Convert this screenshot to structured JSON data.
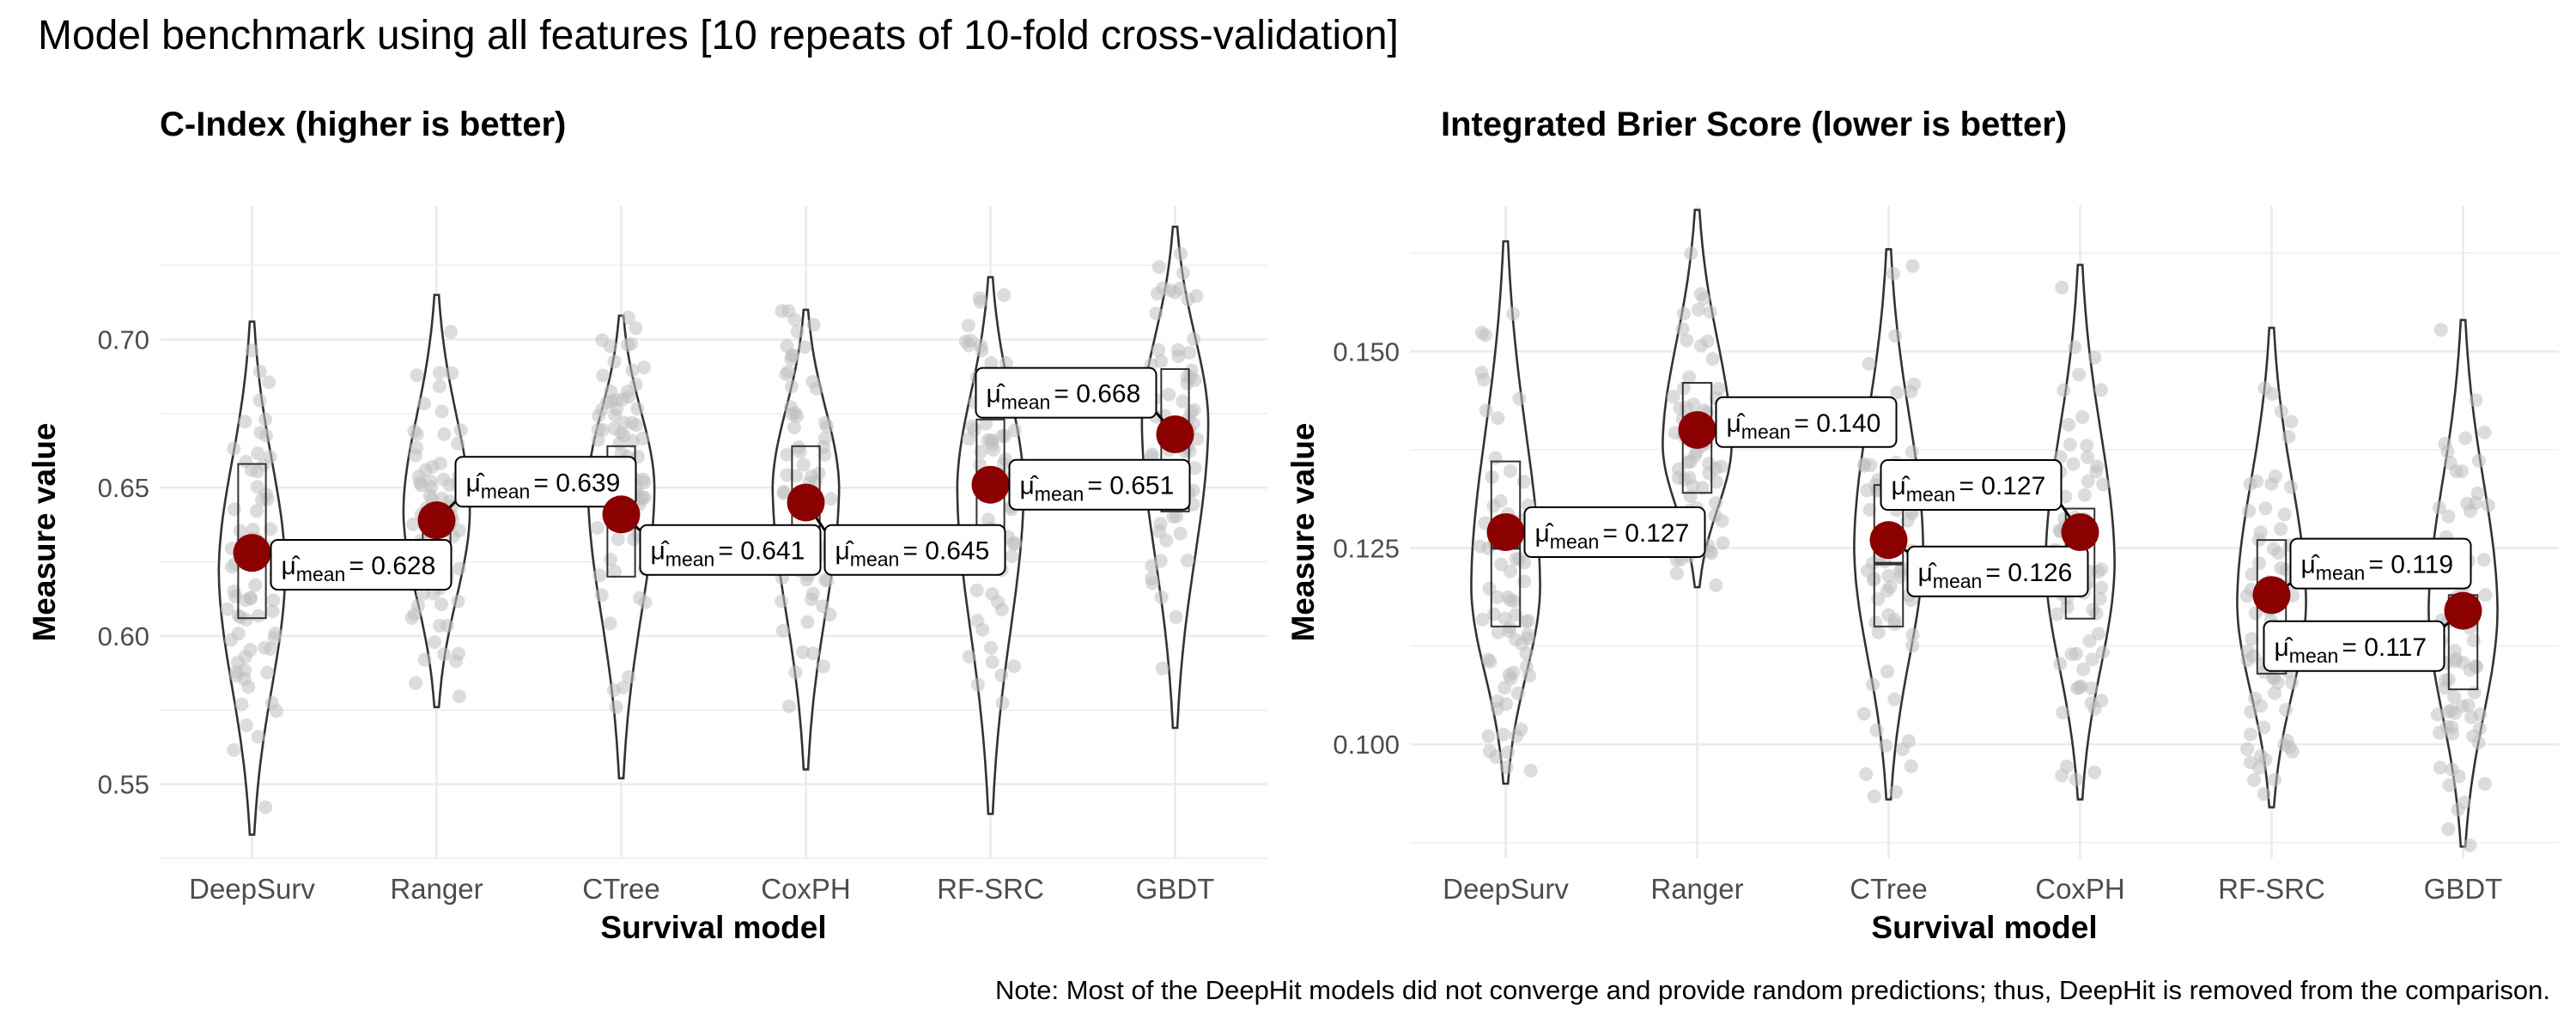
{
  "figure": {
    "title": "Model benchmark using all features [10 repeats of 10-fold cross-validation]",
    "caption": "Note: Most of the DeepHit models did not converge and provide random predictions; thus, DeepHit is removed from the comparison."
  },
  "colors": {
    "mean_point": "#8B0000",
    "jitter_point": "#BFBFBF",
    "outline": "#333333",
    "grid": "#EBEBEB"
  },
  "chart_data": [
    {
      "type": "violin",
      "title": "C-Index (higher is better)",
      "xlabel": "Survival model",
      "ylabel": "Measure value",
      "ylim": [
        0.525,
        0.745
      ],
      "yticks": [
        0.55,
        0.6,
        0.65,
        0.7
      ],
      "ytick_labels": [
        "0.55",
        "0.60",
        "0.65",
        "0.70"
      ],
      "grid": true,
      "label_prefix": "μ̂",
      "label_subscript": "mean",
      "categories": [
        "DeepSurv",
        "Ranger",
        "CTree",
        "CoxPH",
        "RF-SRC",
        "GBDT"
      ],
      "series": [
        {
          "min": 0.533,
          "max": 0.706,
          "mode": 0.622,
          "q1": 0.606,
          "median": 0.626,
          "q3": 0.658,
          "mean": 0.628,
          "mean_label": "= 0.628",
          "label_side": "right",
          "label_dy": -0.004
        },
        {
          "min": 0.576,
          "max": 0.715,
          "mode": 0.642,
          "q1": 0.626,
          "median": 0.637,
          "q3": 0.643,
          "mean": 0.639,
          "mean_label": "= 0.639",
          "label_side": "right",
          "label_dy": 0.013
        },
        {
          "min": 0.552,
          "max": 0.708,
          "mode": 0.65,
          "q1": 0.62,
          "median": 0.637,
          "q3": 0.664,
          "mean": 0.641,
          "mean_label": "= 0.641",
          "label_side": "right",
          "label_dy": -0.012
        },
        {
          "min": 0.555,
          "max": 0.71,
          "mode": 0.65,
          "q1": 0.625,
          "median": 0.645,
          "q3": 0.664,
          "mean": 0.645,
          "mean_label": "= 0.645",
          "label_side": "right",
          "label_dy": -0.016
        },
        {
          "min": 0.54,
          "max": 0.721,
          "mode": 0.65,
          "q1": 0.631,
          "median": 0.654,
          "q3": 0.673,
          "mean": 0.651,
          "mean_label": "= 0.651",
          "label_side": "right",
          "label_dy": 0.0
        },
        {
          "min": 0.569,
          "max": 0.738,
          "mode": 0.672,
          "q1": 0.642,
          "median": 0.669,
          "q3": 0.69,
          "mean": 0.668,
          "mean_label": "= 0.668",
          "label_side": "left",
          "label_dy": 0.014
        }
      ]
    },
    {
      "type": "violin",
      "title": "Integrated Brier Score (lower is better)",
      "xlabel": "Survival model",
      "ylabel": "Measure value",
      "ylim": [
        0.0855,
        0.1685
      ],
      "yticks": [
        0.1,
        0.125,
        0.15
      ],
      "ytick_labels": [
        "0.100",
        "0.125",
        "0.150"
      ],
      "grid": true,
      "label_prefix": "μ̂",
      "label_subscript": "mean",
      "categories": [
        "DeepSurv",
        "Ranger",
        "CTree",
        "CoxPH",
        "RF-SRC",
        "GBDT"
      ],
      "series": [
        {
          "min": 0.095,
          "max": 0.164,
          "mode": 0.12,
          "q1": 0.115,
          "median": 0.125,
          "q3": 0.136,
          "mean": 0.127,
          "mean_label": "= 0.127",
          "label_side": "right",
          "label_dy": 0.0
        },
        {
          "min": 0.12,
          "max": 0.168,
          "mode": 0.138,
          "q1": 0.132,
          "median": 0.14,
          "q3": 0.146,
          "mean": 0.14,
          "mean_label": "= 0.140",
          "label_side": "right",
          "label_dy": 0.001
        },
        {
          "min": 0.093,
          "max": 0.163,
          "mode": 0.125,
          "q1": 0.115,
          "median": 0.123,
          "q3": 0.133,
          "mean": 0.126,
          "mean_label": "= 0.126",
          "label_side": "right",
          "label_dy": -0.004
        },
        {
          "min": 0.093,
          "max": 0.161,
          "mode": 0.123,
          "q1": 0.116,
          "median": 0.126,
          "q3": 0.13,
          "mean": 0.127,
          "mean_label": "= 0.127",
          "label_side": "left",
          "label_dy": 0.006
        },
        {
          "min": 0.092,
          "max": 0.153,
          "mode": 0.118,
          "q1": 0.109,
          "median": 0.119,
          "q3": 0.126,
          "mean": 0.119,
          "mean_label": "= 0.119",
          "label_side": "right",
          "label_dy": 0.004
        },
        {
          "min": 0.087,
          "max": 0.154,
          "mode": 0.117,
          "q1": 0.107,
          "median": 0.116,
          "q3": 0.119,
          "mean": 0.117,
          "mean_label": "= 0.117",
          "label_side": "left",
          "label_dy": -0.0045
        }
      ]
    }
  ]
}
